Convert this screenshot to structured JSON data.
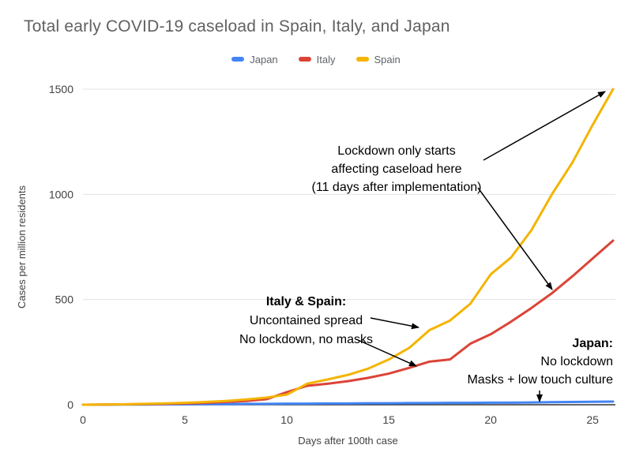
{
  "chart_data": {
    "type": "line",
    "title": "Total early COVID-19 caseload in Spain, Italy, and Japan",
    "xlabel": "Days after 100th case",
    "ylabel": "Cases per million residents",
    "xlim": [
      0,
      26
    ],
    "ylim": [
      0,
      1500
    ],
    "xticks": [
      0,
      5,
      10,
      15,
      20,
      25
    ],
    "yticks": [
      0,
      500,
      1000,
      1500
    ],
    "grid": true,
    "legend_position": "top",
    "x": [
      0,
      1,
      2,
      3,
      4,
      5,
      6,
      7,
      8,
      9,
      10,
      11,
      12,
      13,
      14,
      15,
      16,
      17,
      18,
      19,
      20,
      21,
      22,
      23,
      24,
      25,
      26
    ],
    "series": [
      {
        "name": "Japan",
        "color": "#4285f4",
        "values": [
          0,
          0,
          1,
          1,
          2,
          2,
          3,
          3,
          4,
          4,
          5,
          5,
          6,
          6,
          7,
          7,
          8,
          8,
          9,
          9,
          10,
          10,
          11,
          12,
          13,
          14,
          15
        ]
      },
      {
        "name": "Italy",
        "color": "#db4437",
        "values": [
          0,
          1,
          2,
          3,
          4,
          6,
          9,
          13,
          18,
          26,
          60,
          90,
          100,
          112,
          128,
          148,
          175,
          205,
          215,
          290,
          335,
          395,
          460,
          530,
          610,
          695,
          780
        ]
      },
      {
        "name": "Spain",
        "color": "#f4b400",
        "values": [
          0,
          1,
          2,
          4,
          6,
          9,
          13,
          18,
          25,
          34,
          48,
          100,
          120,
          142,
          172,
          215,
          270,
          355,
          400,
          480,
          620,
          700,
          830,
          1000,
          1150,
          1330,
          1500
        ]
      }
    ],
    "annotations": [
      {
        "id": "lockdown",
        "lines": [
          "Lockdown only starts",
          "affecting caseload here",
          "(11 days after implementation)"
        ]
      },
      {
        "id": "italy-spain",
        "lines": [
          "Italy & Spain:",
          "Uncontained spread",
          "No lockdown, no masks"
        ]
      },
      {
        "id": "japan",
        "lines": [
          "Japan:",
          "No lockdown",
          "Masks + low touch culture"
        ]
      }
    ]
  },
  "colors": {
    "grid": "#e3e3e3",
    "baseline": "#333333",
    "tick_label": "#424242",
    "title": "#616161",
    "annotation": "#000000"
  }
}
